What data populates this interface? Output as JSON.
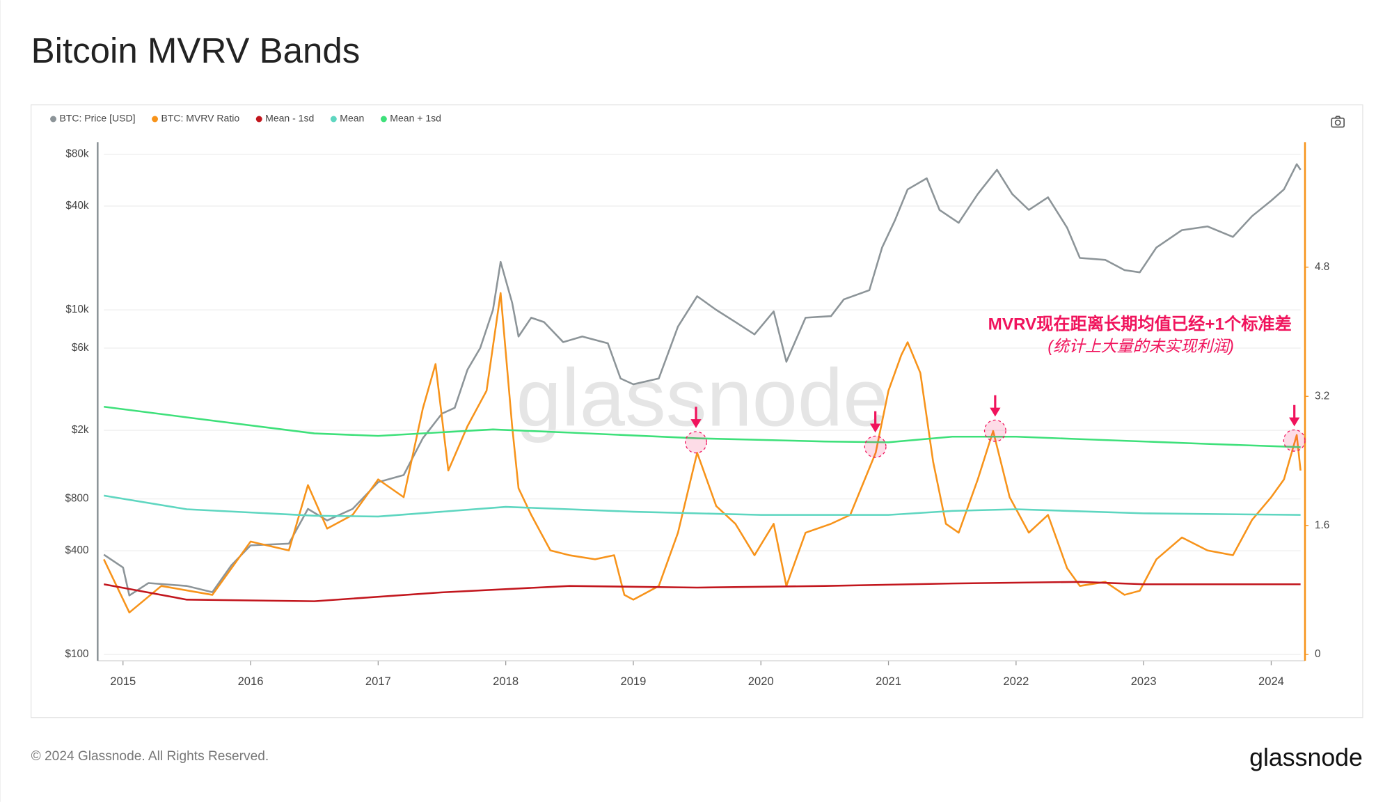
{
  "header": {
    "title": "Bitcoin MVRV Bands"
  },
  "chart_data": {
    "type": "line",
    "watermark": "glassnode",
    "annotation": {
      "title": "MVRV现在距离长期均值已经+1个标准差",
      "subtitle": "(统计上大量的未实现利润)",
      "color": "#f0135c"
    },
    "xlim": [
      2014.85,
      2024.23
    ],
    "xticks": [
      2015,
      2016,
      2017,
      2018,
      2019,
      2020,
      2021,
      2022,
      2023,
      2024
    ],
    "ylog": true,
    "ylim": [
      100,
      94000
    ],
    "yticks": [
      {
        "value": 100,
        "label": "$100"
      },
      {
        "value": 400,
        "label": "$400"
      },
      {
        "value": 800,
        "label": "$800"
      },
      {
        "value": 2000,
        "label": "$2k"
      },
      {
        "value": 6000,
        "label": "$6k"
      },
      {
        "value": 10000,
        "label": "$10k"
      },
      {
        "value": 40000,
        "label": "$40k"
      },
      {
        "value": 80000,
        "label": "$80k"
      }
    ],
    "y2lim": [
      0,
      6.35
    ],
    "y2ticks": [
      0,
      1.6,
      3.2,
      4.8
    ],
    "grid": true,
    "series": [
      {
        "name": "BTC: Price [USD]",
        "color": "#8c9498",
        "axis": "y",
        "x": [
          2014.85,
          2015.0,
          2015.05,
          2015.2,
          2015.5,
          2015.7,
          2015.85,
          2016.0,
          2016.3,
          2016.45,
          2016.6,
          2016.8,
          2017.0,
          2017.2,
          2017.35,
          2017.5,
          2017.6,
          2017.7,
          2017.8,
          2017.9,
          2017.96,
          2018.05,
          2018.1,
          2018.2,
          2018.3,
          2018.45,
          2018.6,
          2018.8,
          2018.9,
          2019.0,
          2019.2,
          2019.35,
          2019.5,
          2019.65,
          2019.8,
          2019.95,
          2020.1,
          2020.2,
          2020.35,
          2020.55,
          2020.65,
          2020.85,
          2020.95,
          2021.05,
          2021.15,
          2021.3,
          2021.4,
          2021.55,
          2021.7,
          2021.85,
          2021.97,
          2022.1,
          2022.25,
          2022.4,
          2022.5,
          2022.7,
          2022.85,
          2022.97,
          2023.1,
          2023.3,
          2023.5,
          2023.7,
          2023.85,
          2024.0,
          2024.1,
          2024.2,
          2024.23
        ],
        "values": [
          380,
          320,
          220,
          260,
          250,
          230,
          330,
          430,
          440,
          700,
          600,
          700,
          1000,
          1100,
          1800,
          2500,
          2700,
          4500,
          6000,
          10000,
          19000,
          11000,
          7000,
          9000,
          8500,
          6500,
          7000,
          6400,
          4000,
          3700,
          4000,
          8000,
          12000,
          10000,
          8500,
          7200,
          9800,
          5000,
          9000,
          9200,
          11500,
          13000,
          23000,
          33000,
          50000,
          58000,
          38000,
          32000,
          47000,
          65000,
          47000,
          38000,
          45000,
          30000,
          20000,
          19500,
          17000,
          16500,
          23000,
          29000,
          30500,
          26500,
          35000,
          43000,
          50000,
          70000,
          65000
        ]
      },
      {
        "name": "BTC: MVRV Ratio",
        "color": "#f7931a",
        "axis": "y2",
        "x": [
          2014.85,
          2015.05,
          2015.3,
          2015.7,
          2016.0,
          2016.3,
          2016.45,
          2016.6,
          2016.8,
          2017.0,
          2017.2,
          2017.35,
          2017.45,
          2017.55,
          2017.7,
          2017.85,
          2017.96,
          2018.05,
          2018.1,
          2018.2,
          2018.35,
          2018.5,
          2018.7,
          2018.85,
          2018.93,
          2019.0,
          2019.2,
          2019.35,
          2019.5,
          2019.65,
          2019.8,
          2019.95,
          2020.1,
          2020.2,
          2020.35,
          2020.55,
          2020.7,
          2020.9,
          2021.0,
          2021.1,
          2021.15,
          2021.25,
          2021.35,
          2021.45,
          2021.55,
          2021.7,
          2021.82,
          2021.95,
          2022.1,
          2022.25,
          2022.4,
          2022.5,
          2022.7,
          2022.85,
          2022.97,
          2023.1,
          2023.3,
          2023.5,
          2023.7,
          2023.85,
          2024.0,
          2024.1,
          2024.2,
          2024.23
        ],
        "values": [
          1.18,
          0.52,
          0.85,
          0.74,
          1.4,
          1.29,
          2.1,
          1.56,
          1.73,
          2.17,
          1.95,
          3.05,
          3.6,
          2.28,
          2.83,
          3.27,
          4.48,
          2.83,
          2.06,
          1.73,
          1.29,
          1.23,
          1.18,
          1.23,
          0.74,
          0.68,
          0.85,
          1.51,
          2.5,
          1.84,
          1.62,
          1.23,
          1.62,
          0.85,
          1.51,
          1.62,
          1.73,
          2.5,
          3.27,
          3.71,
          3.87,
          3.49,
          2.39,
          1.62,
          1.51,
          2.17,
          2.77,
          1.95,
          1.51,
          1.73,
          1.07,
          0.85,
          0.9,
          0.74,
          0.79,
          1.18,
          1.45,
          1.29,
          1.23,
          1.67,
          1.95,
          2.17,
          2.72,
          2.28
        ]
      },
      {
        "name": "Mean - 1sd",
        "color": "#c2161d",
        "axis": "y2",
        "x": [
          2014.85,
          2015.5,
          2016.5,
          2017.5,
          2018.5,
          2019.5,
          2020.5,
          2021.5,
          2022.5,
          2023.0,
          2024.23
        ],
        "values": [
          0.87,
          0.68,
          0.66,
          0.77,
          0.85,
          0.83,
          0.85,
          0.88,
          0.9,
          0.87,
          0.87
        ]
      },
      {
        "name": "Mean",
        "color": "#5ed6c0",
        "axis": "y2",
        "x": [
          2014.85,
          2015.5,
          2016.5,
          2017.0,
          2018.0,
          2019.0,
          2020.0,
          2021.0,
          2021.5,
          2022.0,
          2023.0,
          2024.23
        ],
        "values": [
          1.97,
          1.8,
          1.72,
          1.71,
          1.83,
          1.77,
          1.73,
          1.73,
          1.78,
          1.8,
          1.75,
          1.73
        ]
      },
      {
        "name": "Mean + 1sd",
        "color": "#3ee07a",
        "axis": "y2",
        "x": [
          2014.85,
          2015.5,
          2016.5,
          2017.0,
          2017.9,
          2018.5,
          2019.5,
          2020.5,
          2021.0,
          2021.5,
          2022.0,
          2022.5,
          2023.5,
          2024.23
        ],
        "values": [
          3.07,
          2.94,
          2.74,
          2.71,
          2.79,
          2.75,
          2.68,
          2.64,
          2.63,
          2.7,
          2.7,
          2.67,
          2.61,
          2.57
        ]
      }
    ]
  },
  "footer": {
    "copyright": "© 2024 Glassnode. All Rights Reserved.",
    "logo": "glassnode"
  }
}
